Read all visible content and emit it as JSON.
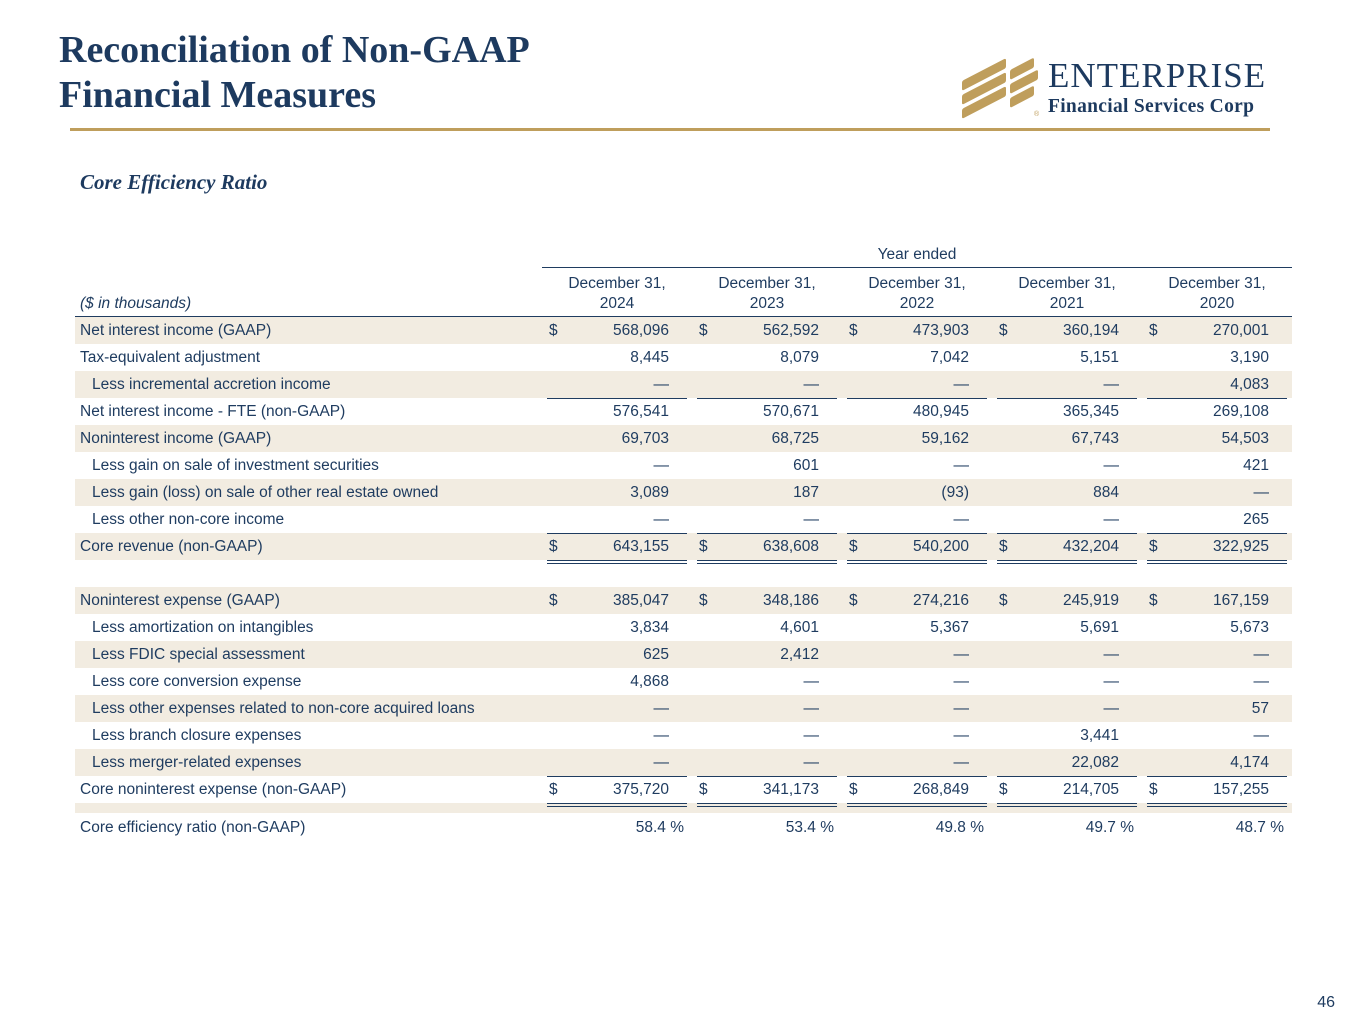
{
  "slide": {
    "title_line1": "Reconciliation of Non-GAAP",
    "title_line2": "Financial Measures",
    "subtitle": "Core Efficiency Ratio",
    "page_number": "46"
  },
  "logo": {
    "name": "ENTERPRISE",
    "tagline": "Financial Services Corp",
    "registered_mark": "®"
  },
  "colors": {
    "navy_text": "#1f3c60",
    "title_navy": "#1d3a5f",
    "accent_gold": "#bf9e5c",
    "row_beige": "#f2ece1"
  },
  "table": {
    "units_note": "($ in thousands)",
    "span_header": "Year ended",
    "currency_symbol": "$",
    "columns": [
      {
        "line1": "December 31,",
        "line2": "2024"
      },
      {
        "line1": "December 31,",
        "line2": "2023"
      },
      {
        "line1": "December 31,",
        "line2": "2022"
      },
      {
        "line1": "December 31,",
        "line2": "2021"
      },
      {
        "line1": "December 31,",
        "line2": "2020"
      }
    ],
    "rows": [
      {
        "label": "Net interest income (GAAP)",
        "indent": false,
        "dollar": true,
        "shade": "beige",
        "values": [
          "568,096",
          "562,592",
          "473,903",
          "360,194",
          "270,001"
        ]
      },
      {
        "label": "Tax-equivalent adjustment",
        "indent": false,
        "dollar": false,
        "shade": "white",
        "values": [
          "8,445",
          "8,079",
          "7,042",
          "5,151",
          "3,190"
        ]
      },
      {
        "label": "Less incremental accretion income",
        "indent": true,
        "dollar": false,
        "shade": "beige",
        "rule": "single",
        "values": [
          "—",
          "—",
          "—",
          "—",
          "4,083"
        ]
      },
      {
        "label": "Net interest income - FTE (non-GAAP)",
        "indent": false,
        "dollar": false,
        "shade": "white",
        "values": [
          "576,541",
          "570,671",
          "480,945",
          "365,345",
          "269,108"
        ]
      },
      {
        "label": "Noninterest income (GAAP)",
        "indent": false,
        "dollar": false,
        "shade": "beige",
        "values": [
          "69,703",
          "68,725",
          "59,162",
          "67,743",
          "54,503"
        ]
      },
      {
        "label": "Less gain on sale of investment securities",
        "indent": true,
        "dollar": false,
        "shade": "white",
        "values": [
          "—",
          "601",
          "—",
          "—",
          "421"
        ]
      },
      {
        "label": "Less gain (loss) on sale of other real estate owned",
        "indent": true,
        "dollar": false,
        "shade": "beige",
        "values": [
          "3,089",
          "187",
          "(93)",
          "884",
          "—"
        ]
      },
      {
        "label": "Less other non-core income",
        "indent": true,
        "dollar": false,
        "shade": "white",
        "rule": "single",
        "values": [
          "—",
          "—",
          "—",
          "—",
          "265"
        ]
      },
      {
        "label": "Core revenue (non-GAAP)",
        "indent": false,
        "dollar": true,
        "shade": "beige",
        "rule": "double",
        "values": [
          "643,155",
          "638,608",
          "540,200",
          "432,204",
          "322,925"
        ]
      },
      {
        "spacer": true,
        "shade": "white",
        "height": 27
      },
      {
        "label": "Noninterest expense (GAAP)",
        "indent": false,
        "dollar": true,
        "shade": "beige",
        "values": [
          "385,047",
          "348,186",
          "274,216",
          "245,919",
          "167,159"
        ]
      },
      {
        "label": "Less amortization on intangibles",
        "indent": true,
        "dollar": false,
        "shade": "white",
        "values": [
          "3,834",
          "4,601",
          "5,367",
          "5,691",
          "5,673"
        ]
      },
      {
        "label": "Less FDIC special assessment",
        "indent": true,
        "dollar": false,
        "shade": "beige",
        "values": [
          "625",
          "2,412",
          "—",
          "—",
          "—"
        ]
      },
      {
        "label": "Less core conversion expense",
        "indent": true,
        "dollar": false,
        "shade": "white",
        "values": [
          "4,868",
          "—",
          "—",
          "—",
          "—"
        ]
      },
      {
        "label": "Less other expenses related to non-core acquired loans",
        "indent": true,
        "dollar": false,
        "shade": "beige",
        "values": [
          "—",
          "—",
          "—",
          "—",
          "57"
        ]
      },
      {
        "label": "Less branch closure expenses",
        "indent": true,
        "dollar": false,
        "shade": "white",
        "values": [
          "—",
          "—",
          "—",
          "3,441",
          "—"
        ]
      },
      {
        "label": "Less merger-related expenses",
        "indent": true,
        "dollar": false,
        "shade": "beige",
        "rule": "single",
        "values": [
          "—",
          "—",
          "—",
          "22,082",
          "4,174"
        ]
      },
      {
        "label": "Core noninterest expense (non-GAAP)",
        "indent": false,
        "dollar": true,
        "shade": "white",
        "rule": "double",
        "values": [
          "375,720",
          "341,173",
          "268,849",
          "214,705",
          "157,255"
        ]
      },
      {
        "spacer": true,
        "shade": "beige",
        "height": 10
      },
      {
        "label": "Core efficiency ratio (non-GAAP)",
        "indent": false,
        "dollar": false,
        "shade": "white",
        "ratio": true,
        "values": [
          "58.4 %",
          "53.4 %",
          "49.8 %",
          "49.7 %",
          "48.7 %"
        ]
      }
    ]
  }
}
